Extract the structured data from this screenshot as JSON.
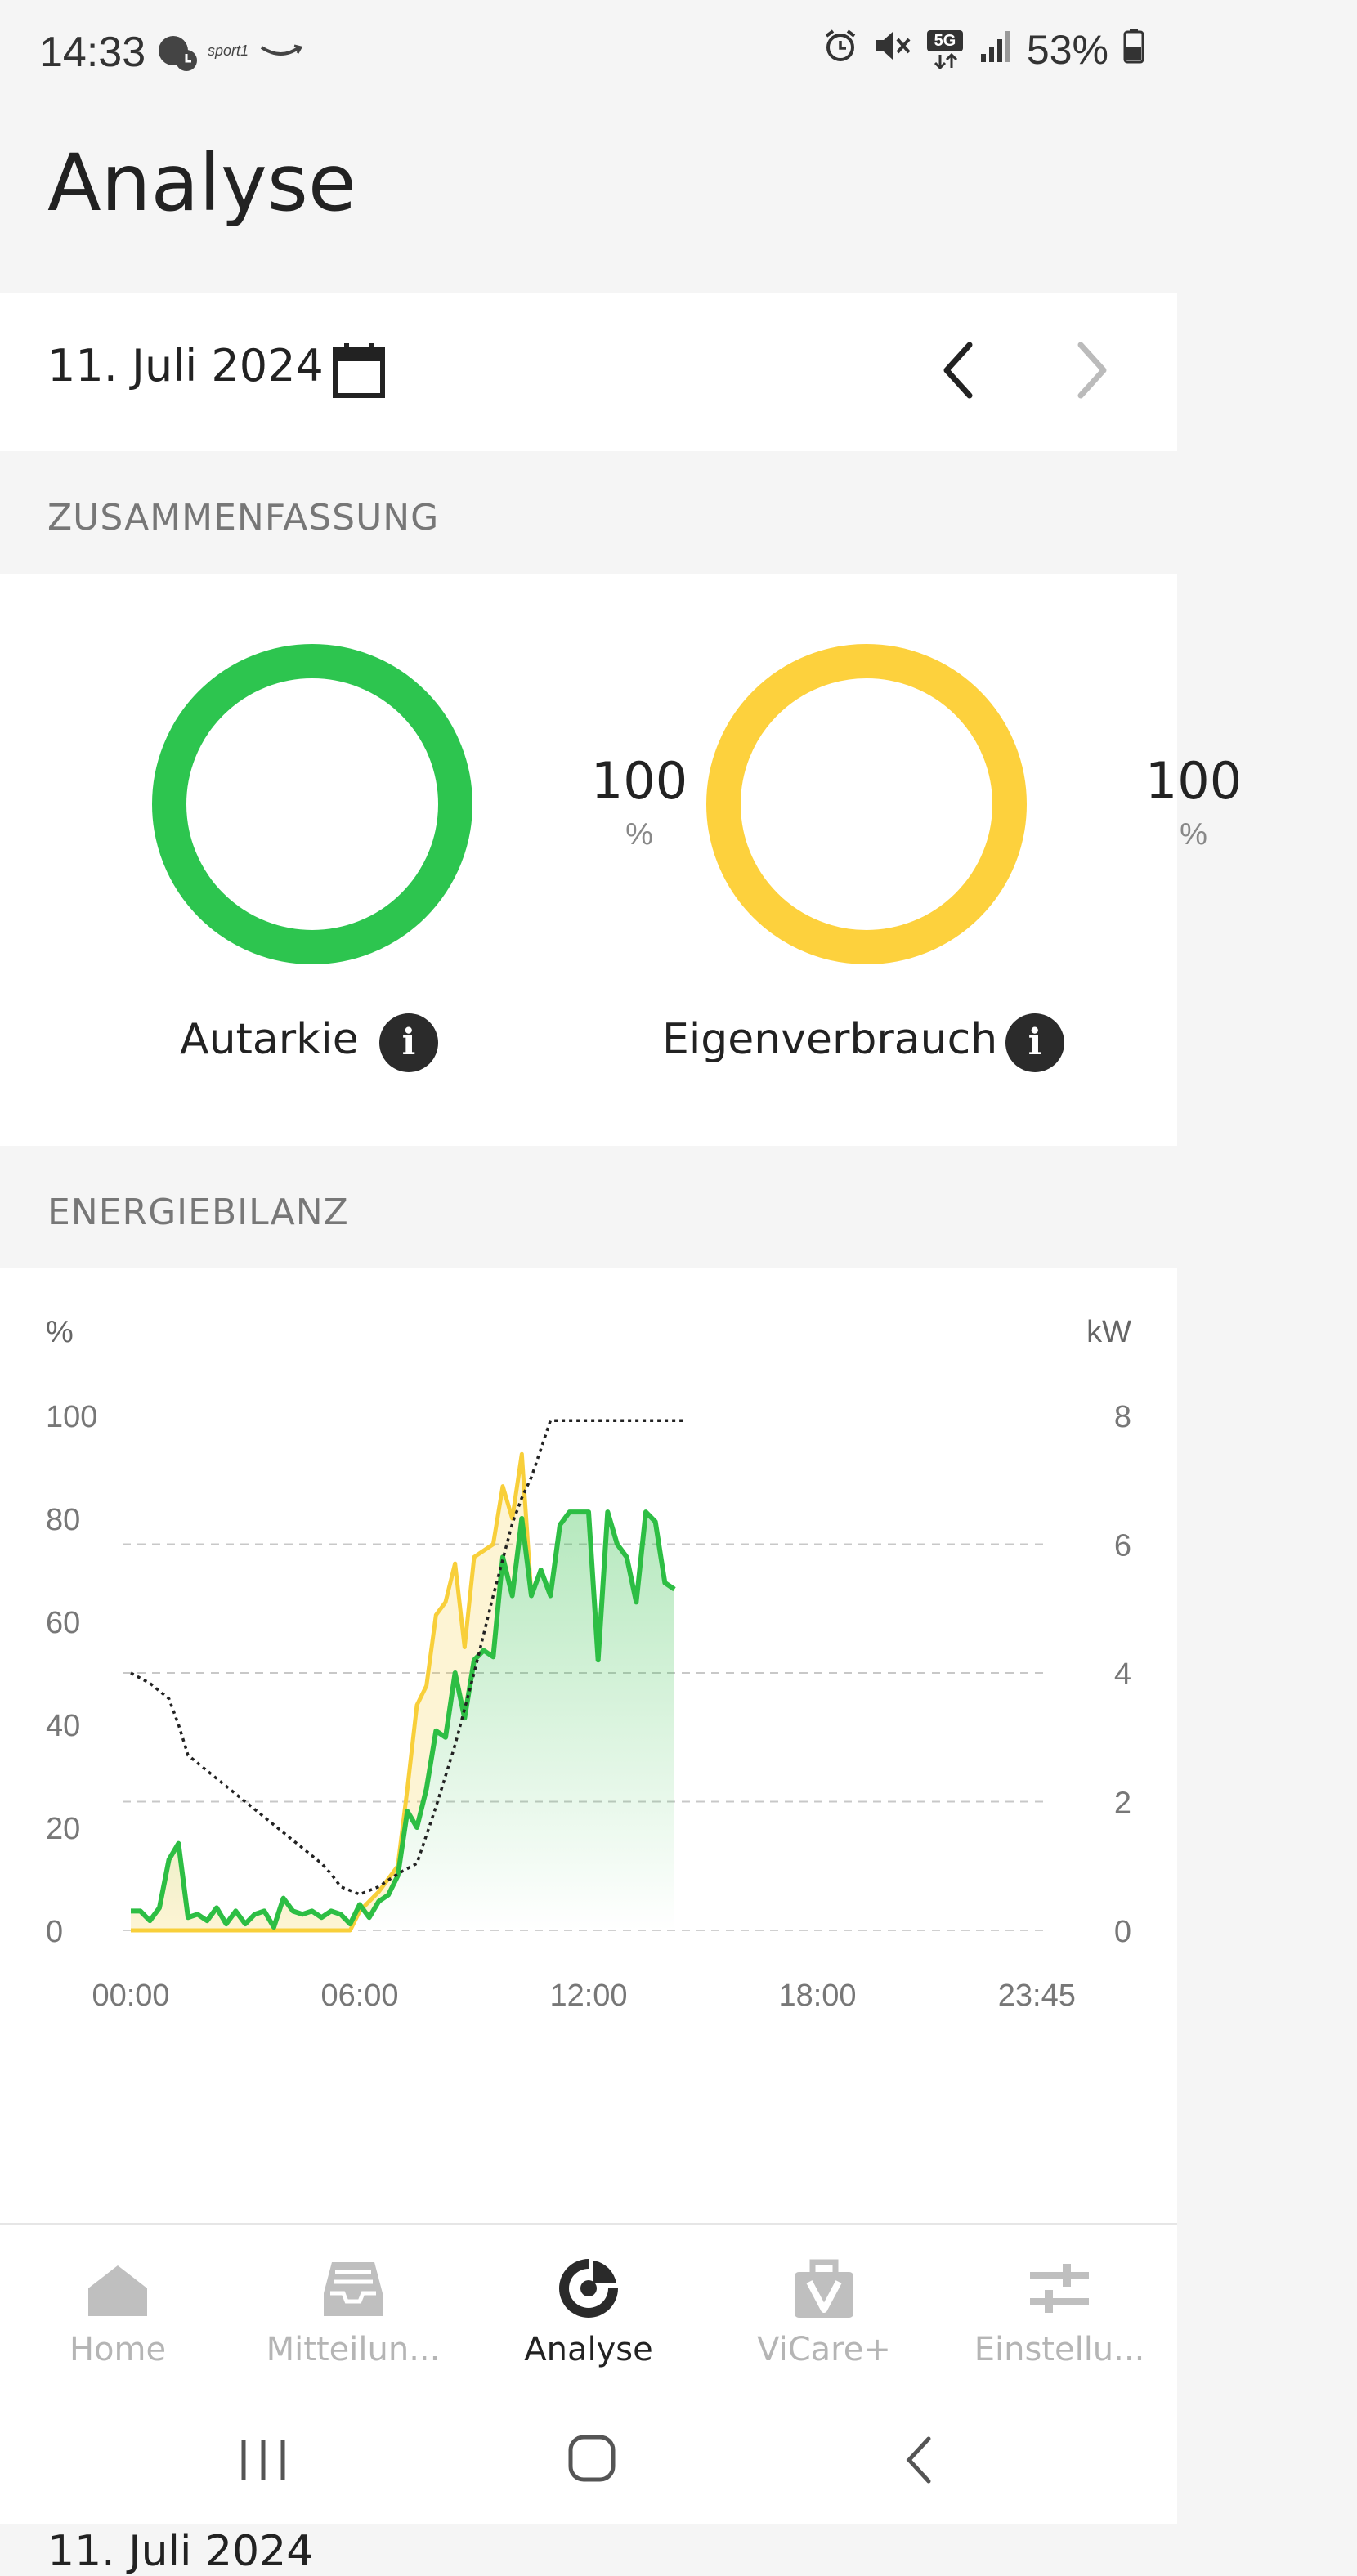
{
  "status_bar": {
    "time": "14:33",
    "app_badge": "sport1",
    "network": "5G",
    "battery": "53%"
  },
  "page_title": "Analyse",
  "date_bar": {
    "date": "11. Juli 2024"
  },
  "summary": {
    "header": "ZUSAMMENFASSUNG",
    "autarkie": {
      "value": "100",
      "unit": "%",
      "label": "Autarkie",
      "color": "#2dc54f"
    },
    "eigenverbrauch": {
      "value": "100",
      "unit": "%",
      "label": "Eigenverbrauch",
      "color": "#fdd13d"
    }
  },
  "energy": {
    "header": "ENERGIEBILANZ",
    "bottom_date": "11. Juli 2024"
  },
  "chart_data": {
    "type": "line",
    "left_axis_label": "%",
    "right_axis_label": "kW",
    "left_ticks": [
      "100",
      "80",
      "60",
      "40",
      "20",
      "0"
    ],
    "right_ticks": [
      "8",
      "6",
      "4",
      "2",
      "0"
    ],
    "x_ticks": [
      "00:00",
      "06:00",
      "12:00",
      "18:00",
      "23:45"
    ],
    "ylim_left": [
      0,
      100
    ],
    "ylim_right": [
      0,
      8
    ],
    "grid": "dashed at 2, 4, 6 kW",
    "colors": {
      "green": "#2dbe44",
      "yellow": "#f8cf3a",
      "dotted": "#222222"
    },
    "series": [
      {
        "color": "#2dbe44",
        "axis": "right",
        "x": [
          0,
          0.25,
          0.5,
          0.75,
          1,
          1.25,
          1.5,
          1.75,
          2,
          2.25,
          2.5,
          2.75,
          3,
          3.25,
          3.5,
          3.75,
          4,
          4.25,
          4.5,
          4.75,
          5,
          5.25,
          5.5,
          5.75,
          6,
          6.25,
          6.5,
          6.75,
          7,
          7.25,
          7.5,
          7.75,
          8,
          8.25,
          8.5,
          8.75,
          9,
          9.25,
          9.5,
          9.75,
          10,
          10.25,
          10.5,
          10.75,
          11,
          11.25,
          11.5,
          11.75,
          12,
          12.25,
          12.5,
          12.75,
          13,
          13.25,
          13.5,
          13.75,
          14,
          14.25
        ],
        "values": [
          0.3,
          0.3,
          0.15,
          0.35,
          1.1,
          1.35,
          0.2,
          0.25,
          0.15,
          0.35,
          0.1,
          0.3,
          0.1,
          0.25,
          0.3,
          0.05,
          0.5,
          0.3,
          0.25,
          0.3,
          0.2,
          0.3,
          0.25,
          0.1,
          0.4,
          0.2,
          0.45,
          0.55,
          0.85,
          1.85,
          1.6,
          2.2,
          3.1,
          3.0,
          4.0,
          3.3,
          4.2,
          4.35,
          4.25,
          5.8,
          5.2,
          6.4,
          5.2,
          5.6,
          5.2,
          6.3,
          6.5,
          6.5,
          6.5,
          4.2,
          6.5,
          6.0,
          5.8,
          5.1,
          6.5,
          6.35,
          5.4,
          5.3
        ]
      },
      {
        "color": "#f8cf3a",
        "axis": "right",
        "x": [
          0,
          0.25,
          0.5,
          0.75,
          1,
          1.25,
          1.5,
          1.75,
          2,
          2.25,
          2.5,
          2.75,
          3,
          3.25,
          3.5,
          3.75,
          4,
          4.25,
          4.5,
          4.75,
          5,
          5.25,
          5.5,
          5.75,
          6,
          6.25,
          6.5,
          6.75,
          7,
          7.25,
          7.5,
          7.75,
          8,
          8.25,
          8.5,
          8.75,
          9,
          9.25,
          9.5,
          9.75,
          10,
          10.25,
          10.5,
          10.75,
          11,
          11.25,
          11.5,
          11.75,
          12,
          12.25,
          12.5,
          12.75,
          13,
          13.25,
          13.5,
          13.75,
          14,
          14.25
        ],
        "values": [
          0,
          0,
          0,
          0,
          0,
          0,
          0,
          0,
          0,
          0,
          0,
          0,
          0,
          0,
          0,
          0,
          0,
          0,
          0,
          0,
          0,
          0,
          0,
          0,
          0.3,
          0.45,
          0.6,
          0.8,
          1.0,
          2.2,
          3.5,
          3.8,
          4.9,
          5.1,
          5.7,
          4.4,
          5.8,
          5.9,
          6.0,
          6.9,
          6.4,
          7.4,
          5.2,
          5.6,
          5.2,
          6.3,
          6.5,
          6.5,
          6.5,
          4.2,
          6.5,
          6.0,
          5.8,
          5.1,
          6.5,
          6.35,
          5.4,
          5.3
        ]
      },
      {
        "color": "#222222",
        "style": "dotted",
        "axis": "left",
        "x": [
          0,
          0.5,
          1,
          1.25,
          1.5,
          2,
          2.5,
          3,
          3.5,
          4,
          4.5,
          5,
          5.25,
          5.5,
          6,
          6.5,
          7,
          7.5,
          8,
          8.5,
          9,
          9.5,
          10,
          10.25,
          10.5,
          11,
          12,
          13,
          14,
          14.5
        ],
        "values": [
          50,
          48,
          45,
          40,
          34,
          31,
          28,
          25,
          22,
          19,
          16,
          13,
          11,
          8.5,
          7,
          8.5,
          11,
          13,
          24,
          36,
          50,
          65,
          79,
          84,
          88,
          99,
          99,
          99,
          99,
          99
        ]
      }
    ]
  },
  "bottom_nav": {
    "items": [
      {
        "label": "Home",
        "icon": "home-icon"
      },
      {
        "label": "Mitteilun...",
        "icon": "inbox-icon"
      },
      {
        "label": "Analyse",
        "icon": "analytics-icon",
        "active": true
      },
      {
        "label": "ViCare+",
        "icon": "briefcase-icon"
      },
      {
        "label": "Einstellu...",
        "icon": "sliders-icon"
      }
    ]
  }
}
